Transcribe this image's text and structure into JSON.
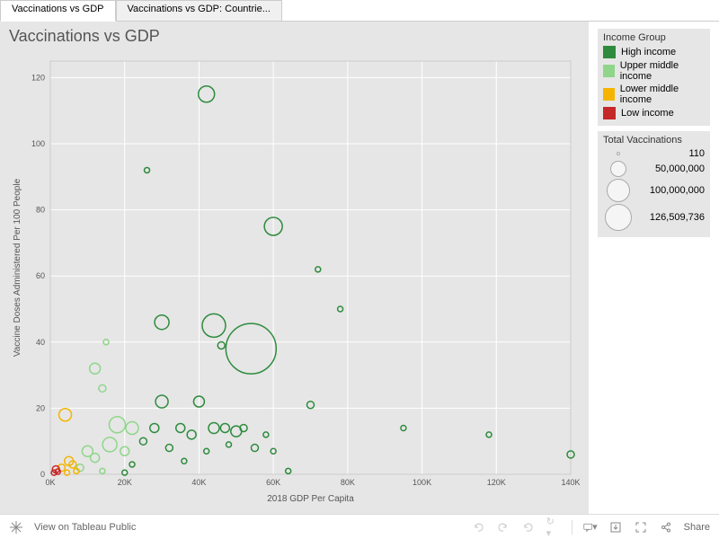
{
  "tabs": [
    {
      "label": "Vaccinations vs GDP",
      "active": true
    },
    {
      "label": "Vaccinations vs GDP: Countrie...",
      "active": false
    }
  ],
  "chart": {
    "title": "Vaccinations vs GDP",
    "type": "scatter",
    "xlabel": "2018 GDP Per Capita",
    "ylabel": "Vaccine Doses Administered Per 100 People",
    "xlim": [
      0,
      140000
    ],
    "ylim": [
      0,
      125
    ],
    "xticks": [
      0,
      20000,
      40000,
      60000,
      80000,
      100000,
      120000,
      140000
    ],
    "xtick_labels": [
      "0K",
      "20K",
      "40K",
      "60K",
      "80K",
      "100K",
      "120K",
      "140K"
    ],
    "yticks": [
      0,
      20,
      40,
      60,
      80,
      100,
      120
    ],
    "background_color": "#e6e6e6",
    "grid_color": "#ffffff",
    "label_fontsize": 10,
    "tick_fontsize": 9,
    "marker_style": "open-circle",
    "marker_stroke_width": 1.5,
    "colors": {
      "High income": "#2e8b3d",
      "Upper middle income": "#8fd68a",
      "Lower middle income": "#f4b400",
      "Low income": "#c62828"
    },
    "size_scale": {
      "min_val": 110,
      "max_val": 126509736,
      "min_r": 2,
      "max_r": 28
    },
    "data": [
      {
        "x": 54000,
        "y": 38,
        "r": 28,
        "g": "High income"
      },
      {
        "x": 42000,
        "y": 115,
        "r": 9,
        "g": "High income"
      },
      {
        "x": 60000,
        "y": 75,
        "r": 10,
        "g": "High income"
      },
      {
        "x": 44000,
        "y": 45,
        "r": 13,
        "g": "High income"
      },
      {
        "x": 30000,
        "y": 46,
        "r": 8,
        "g": "High income"
      },
      {
        "x": 26000,
        "y": 92,
        "r": 3,
        "g": "High income"
      },
      {
        "x": 72000,
        "y": 62,
        "r": 3,
        "g": "High income"
      },
      {
        "x": 78000,
        "y": 50,
        "r": 3,
        "g": "High income"
      },
      {
        "x": 46000,
        "y": 39,
        "r": 4,
        "g": "High income"
      },
      {
        "x": 30000,
        "y": 22,
        "r": 7,
        "g": "High income"
      },
      {
        "x": 40000,
        "y": 22,
        "r": 6,
        "g": "High income"
      },
      {
        "x": 44000,
        "y": 14,
        "r": 6,
        "g": "High income"
      },
      {
        "x": 47000,
        "y": 14,
        "r": 5,
        "g": "High income"
      },
      {
        "x": 50000,
        "y": 13,
        "r": 6,
        "g": "High income"
      },
      {
        "x": 52000,
        "y": 14,
        "r": 4,
        "g": "High income"
      },
      {
        "x": 55000,
        "y": 8,
        "r": 4,
        "g": "High income"
      },
      {
        "x": 58000,
        "y": 12,
        "r": 3,
        "g": "High income"
      },
      {
        "x": 60000,
        "y": 7,
        "r": 3,
        "g": "High income"
      },
      {
        "x": 64000,
        "y": 1,
        "r": 3,
        "g": "High income"
      },
      {
        "x": 70000,
        "y": 21,
        "r": 4,
        "g": "High income"
      },
      {
        "x": 95000,
        "y": 14,
        "r": 3,
        "g": "High income"
      },
      {
        "x": 118000,
        "y": 12,
        "r": 3,
        "g": "High income"
      },
      {
        "x": 140000,
        "y": 6,
        "r": 4,
        "g": "High income"
      },
      {
        "x": 35000,
        "y": 14,
        "r": 5,
        "g": "High income"
      },
      {
        "x": 38000,
        "y": 12,
        "r": 5,
        "g": "High income"
      },
      {
        "x": 32000,
        "y": 8,
        "r": 4,
        "g": "High income"
      },
      {
        "x": 28000,
        "y": 14,
        "r": 5,
        "g": "High income"
      },
      {
        "x": 25000,
        "y": 10,
        "r": 4,
        "g": "High income"
      },
      {
        "x": 22000,
        "y": 3,
        "r": 3,
        "g": "High income"
      },
      {
        "x": 20000,
        "y": 0.5,
        "r": 3,
        "g": "High income"
      },
      {
        "x": 48000,
        "y": 9,
        "r": 3,
        "g": "High income"
      },
      {
        "x": 42000,
        "y": 7,
        "r": 3,
        "g": "High income"
      },
      {
        "x": 36000,
        "y": 4,
        "r": 3,
        "g": "High income"
      },
      {
        "x": 15000,
        "y": 40,
        "r": 3,
        "g": "Upper middle income"
      },
      {
        "x": 12000,
        "y": 32,
        "r": 6,
        "g": "Upper middle income"
      },
      {
        "x": 14000,
        "y": 26,
        "r": 4,
        "g": "Upper middle income"
      },
      {
        "x": 18000,
        "y": 15,
        "r": 9,
        "g": "Upper middle income"
      },
      {
        "x": 16000,
        "y": 9,
        "r": 8,
        "g": "Upper middle income"
      },
      {
        "x": 10000,
        "y": 7,
        "r": 6,
        "g": "Upper middle income"
      },
      {
        "x": 12000,
        "y": 5,
        "r": 5,
        "g": "Upper middle income"
      },
      {
        "x": 8000,
        "y": 2,
        "r": 4,
        "g": "Upper middle income"
      },
      {
        "x": 14000,
        "y": 1,
        "r": 3,
        "g": "Upper middle income"
      },
      {
        "x": 20000,
        "y": 7,
        "r": 5,
        "g": "Upper middle income"
      },
      {
        "x": 22000,
        "y": 14,
        "r": 7,
        "g": "Upper middle income"
      },
      {
        "x": 4000,
        "y": 18,
        "r": 7,
        "g": "Lower middle income"
      },
      {
        "x": 5000,
        "y": 4,
        "r": 5,
        "g": "Lower middle income"
      },
      {
        "x": 6000,
        "y": 3,
        "r": 4,
        "g": "Lower middle income"
      },
      {
        "x": 3000,
        "y": 2,
        "r": 4,
        "g": "Lower middle income"
      },
      {
        "x": 7000,
        "y": 1,
        "r": 3,
        "g": "Lower middle income"
      },
      {
        "x": 4500,
        "y": 0.5,
        "r": 3,
        "g": "Lower middle income"
      },
      {
        "x": 1500,
        "y": 1.5,
        "r": 4,
        "g": "Low income"
      },
      {
        "x": 1000,
        "y": 0.5,
        "r": 3,
        "g": "Low income"
      },
      {
        "x": 2000,
        "y": 0.8,
        "r": 3,
        "g": "Low income"
      }
    ]
  },
  "legend_color": {
    "title": "Income Group",
    "items": [
      {
        "label": "High income",
        "color": "#2e8b3d"
      },
      {
        "label": "Upper middle income",
        "color": "#8fd68a"
      },
      {
        "label": "Lower middle income",
        "color": "#f4b400"
      },
      {
        "label": "Low income",
        "color": "#c62828"
      }
    ]
  },
  "legend_size": {
    "title": "Total Vaccinations",
    "items": [
      {
        "label": "110",
        "d": 4
      },
      {
        "label": "50,000,000",
        "d": 18
      },
      {
        "label": "100,000,000",
        "d": 26
      },
      {
        "label": "126,509,736",
        "d": 30
      }
    ]
  },
  "footer": {
    "tableau_label": "View on Tableau Public",
    "share_label": "Share"
  }
}
